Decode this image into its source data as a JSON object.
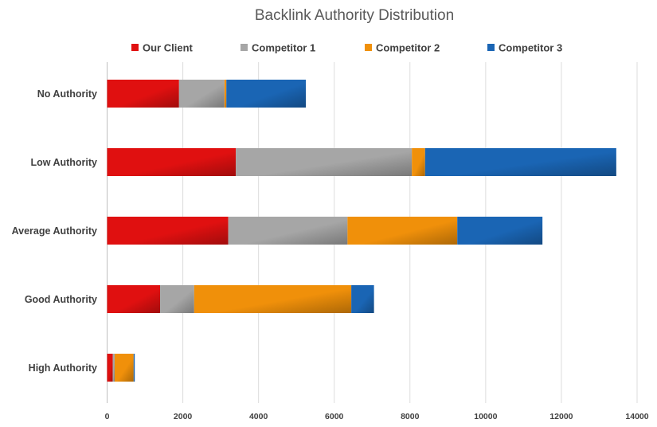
{
  "chart_data": {
    "type": "bar",
    "orientation": "horizontal",
    "stacked": true,
    "title": "Backlink Authority Distribution",
    "xlabel": "",
    "ylabel": "",
    "xlim": [
      0,
      14000
    ],
    "x_ticks": [
      0,
      2000,
      4000,
      6000,
      8000,
      10000,
      12000,
      14000
    ],
    "grid": true,
    "legend_position": "top",
    "categories": [
      "No Authority",
      "Low Authority",
      "Average Authority",
      "Good Authority",
      "High Authority"
    ],
    "series": [
      {
        "name": "Our Client",
        "color": "#e01010",
        "values": [
          1900,
          3400,
          3200,
          1400,
          150
        ]
      },
      {
        "name": "Competitor 1",
        "color": "#a6a6a6",
        "values": [
          1200,
          4650,
          3150,
          900,
          50
        ]
      },
      {
        "name": "Competitor 2",
        "color": "#f0900a",
        "values": [
          50,
          350,
          2900,
          4150,
          500
        ]
      },
      {
        "name": "Competitor 3",
        "color": "#1a65b4",
        "values": [
          2100,
          5050,
          2250,
          600,
          30
        ]
      }
    ]
  }
}
